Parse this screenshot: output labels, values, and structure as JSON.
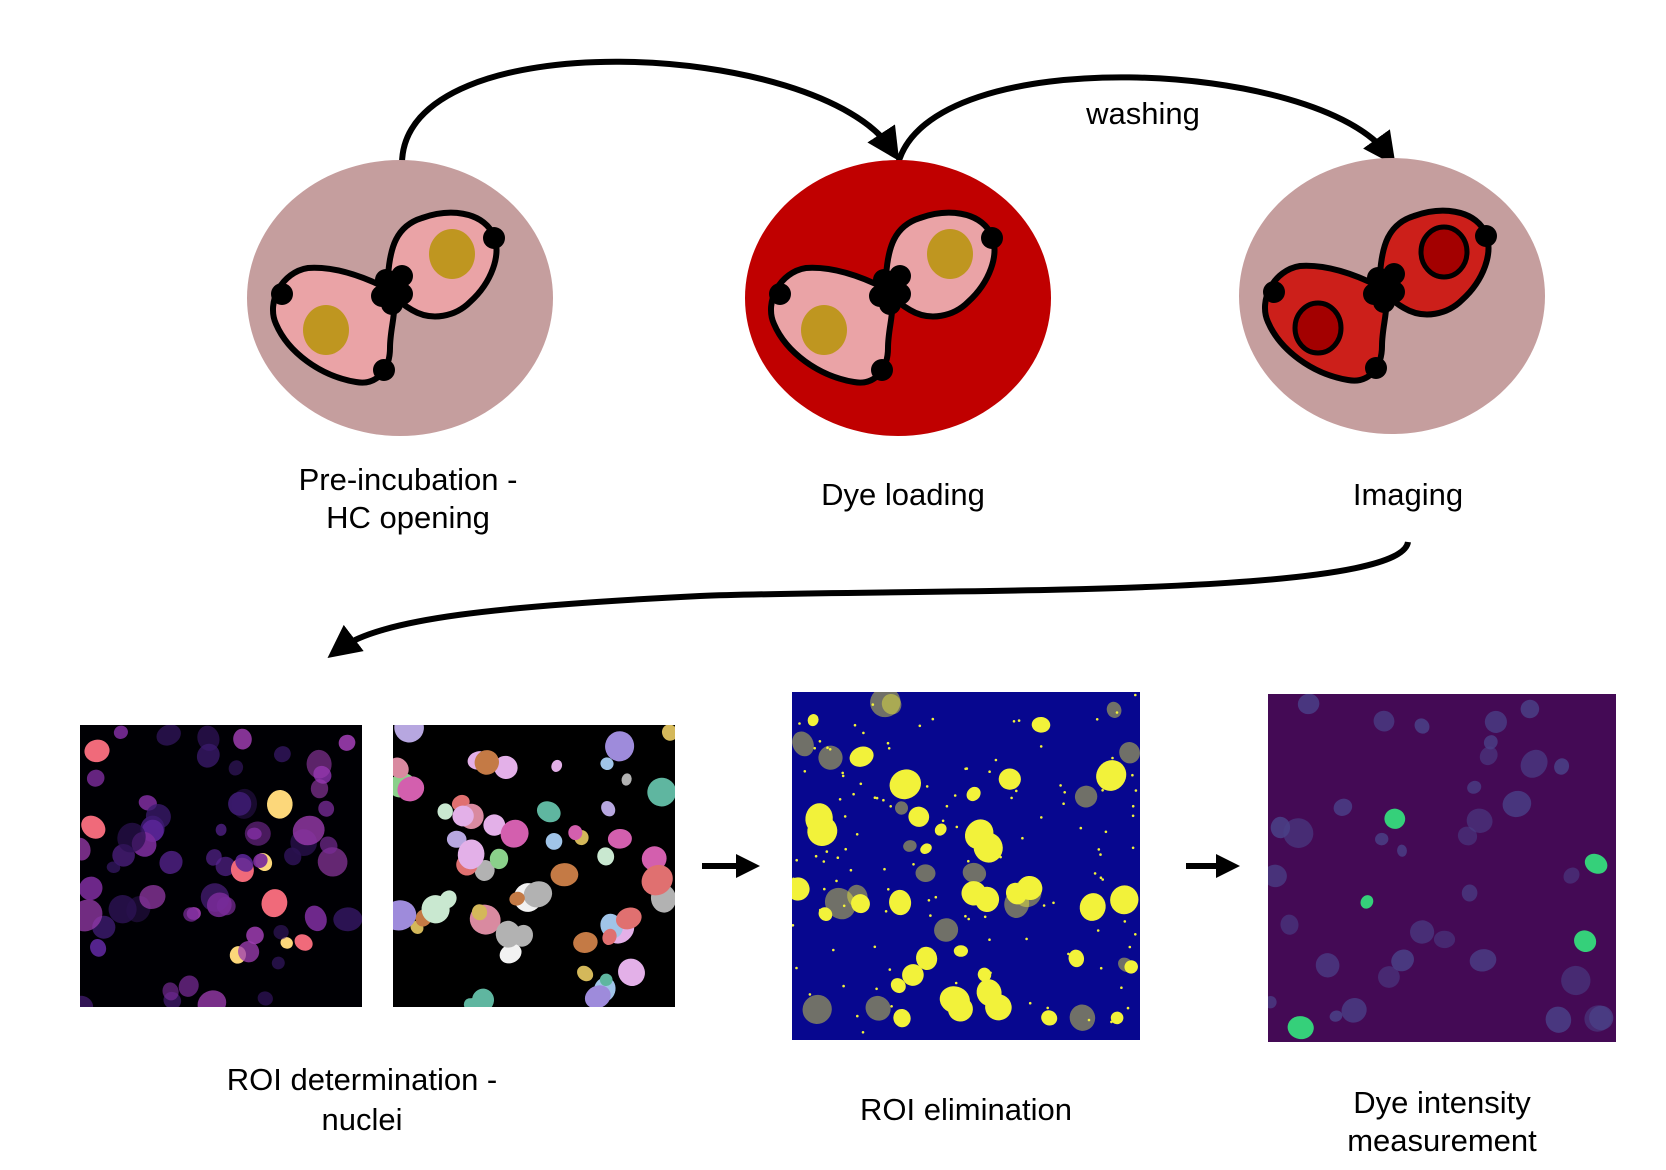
{
  "labels": {
    "washing": "washing",
    "preincubation_line1": "Pre-incubation -",
    "preincubation_line2": "HC opening",
    "dye_loading": "Dye loading",
    "imaging": "Imaging",
    "roi_determination_line1": "ROI determination -",
    "roi_determination_line2": "nuclei",
    "roi_elimination": "ROI elimination",
    "dye_intensity_line1": "Dye intensity",
    "dye_intensity_line2": "measurement"
  },
  "colors": {
    "dish_background": "#c59e9e",
    "dish_dye": "#c00000",
    "cell_unloaded": "#eaa3a6",
    "cell_loaded": "#cc1f1a",
    "nucleus_unloaded": "#bf9620",
    "nucleus_loaded": "#a30000",
    "outline": "#000000",
    "micro_magma_bg": "#000004",
    "micro_segment_bg": "#000000",
    "micro_mask_bg": "#07078f",
    "micro_mask_fg": "#f2f23a",
    "micro_viridis_bg": "#440a55",
    "micro_viridis_hi": "#35d07a"
  },
  "icons": {
    "flow_arrow": "curved-arrow-icon",
    "step_arrow": "right-arrow-icon"
  }
}
